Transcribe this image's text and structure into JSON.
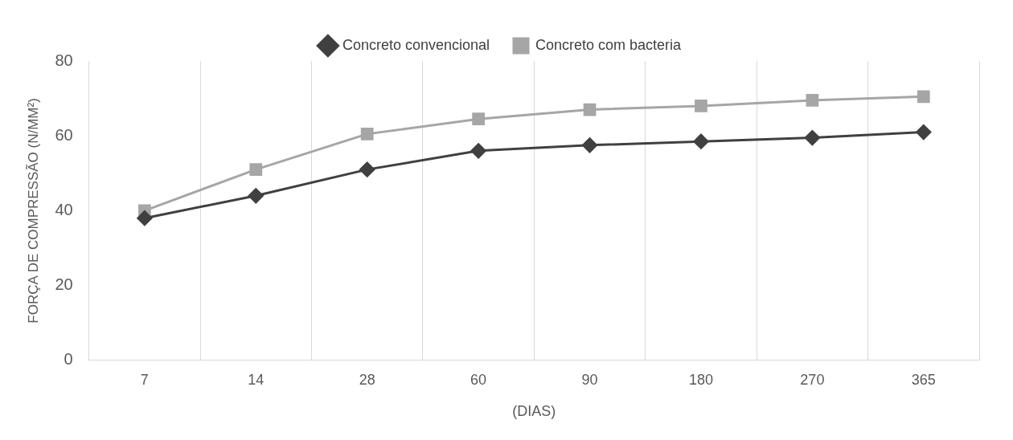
{
  "chart_data": {
    "type": "line",
    "xlabel": "(DIAS)",
    "ylabel": "FORÇA DE COMPRESSÃO (N/MM²)",
    "categories": [
      "7",
      "14",
      "28",
      "60",
      "90",
      "180",
      "270",
      "365"
    ],
    "series": [
      {
        "name": "Concreto convencional",
        "color": "#404040",
        "marker": "diamond",
        "values": [
          38,
          44,
          51,
          56,
          57.5,
          58.5,
          59.5,
          61
        ]
      },
      {
        "name": "Concreto com bacteria",
        "color": "#a6a6a6",
        "marker": "square",
        "values": [
          40,
          51,
          60.5,
          64.5,
          67,
          68,
          69.5,
          70.5
        ]
      }
    ],
    "ylim": [
      0,
      80
    ],
    "yticks": [
      0,
      20,
      40,
      60,
      80
    ],
    "grid": "x",
    "legend": "top",
    "line_style": "solid"
  }
}
